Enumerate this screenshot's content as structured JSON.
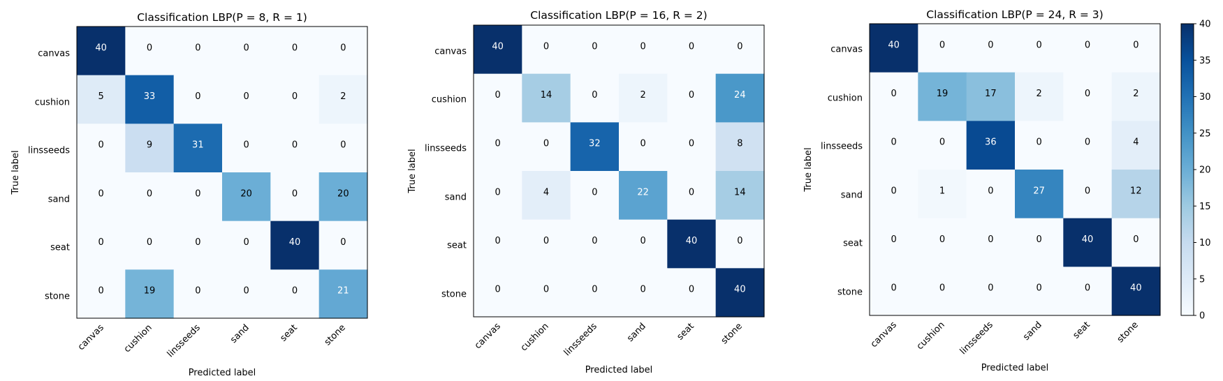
{
  "chart_data": [
    {
      "type": "heatmap",
      "title": "Classification LBP(P = 8, R = 1)",
      "xlabel": "Predicted label",
      "ylabel": "True label",
      "x_categories": [
        "canvas",
        "cushion",
        "linsseeds",
        "sand",
        "seat",
        "stone"
      ],
      "y_categories": [
        "canvas",
        "cushion",
        "linsseeds",
        "sand",
        "seat",
        "stone"
      ],
      "values": [
        [
          40,
          0,
          0,
          0,
          0,
          0
        ],
        [
          5,
          33,
          0,
          0,
          0,
          2
        ],
        [
          0,
          9,
          31,
          0,
          0,
          0
        ],
        [
          0,
          0,
          0,
          20,
          0,
          20
        ],
        [
          0,
          0,
          0,
          0,
          40,
          0
        ],
        [
          0,
          19,
          0,
          0,
          0,
          21
        ]
      ],
      "colormap": "Blues",
      "vmin": 0,
      "vmax": 40
    },
    {
      "type": "heatmap",
      "title": "Classification LBP(P = 16, R = 2)",
      "xlabel": "Predicted label",
      "ylabel": "True label",
      "x_categories": [
        "canvas",
        "cushion",
        "linsseeds",
        "sand",
        "seat",
        "stone"
      ],
      "y_categories": [
        "canvas",
        "cushion",
        "linsseeds",
        "sand",
        "seat",
        "stone"
      ],
      "values": [
        [
          40,
          0,
          0,
          0,
          0,
          0
        ],
        [
          0,
          14,
          0,
          2,
          0,
          24
        ],
        [
          0,
          0,
          32,
          0,
          0,
          8
        ],
        [
          0,
          4,
          0,
          22,
          0,
          14
        ],
        [
          0,
          0,
          0,
          0,
          40,
          0
        ],
        [
          0,
          0,
          0,
          0,
          0,
          40
        ]
      ],
      "colormap": "Blues",
      "vmin": 0,
      "vmax": 40
    },
    {
      "type": "heatmap",
      "title": "Classification LBP(P = 24, R = 3)",
      "xlabel": "Predicted label",
      "ylabel": "True label",
      "x_categories": [
        "canvas",
        "cushion",
        "linsseeds",
        "sand",
        "seat",
        "stone"
      ],
      "y_categories": [
        "canvas",
        "cushion",
        "linsseeds",
        "sand",
        "seat",
        "stone"
      ],
      "values": [
        [
          40,
          0,
          0,
          0,
          0,
          0
        ],
        [
          0,
          19,
          17,
          2,
          0,
          2
        ],
        [
          0,
          0,
          36,
          0,
          0,
          4
        ],
        [
          0,
          1,
          0,
          27,
          0,
          12
        ],
        [
          0,
          0,
          0,
          0,
          40,
          0
        ],
        [
          0,
          0,
          0,
          0,
          0,
          40
        ]
      ],
      "colormap": "Blues",
      "vmin": 0,
      "vmax": 40
    }
  ],
  "colorbar": {
    "ticks": [
      0,
      5,
      10,
      15,
      20,
      25,
      30,
      35,
      40
    ],
    "min": 0,
    "max": 40
  }
}
